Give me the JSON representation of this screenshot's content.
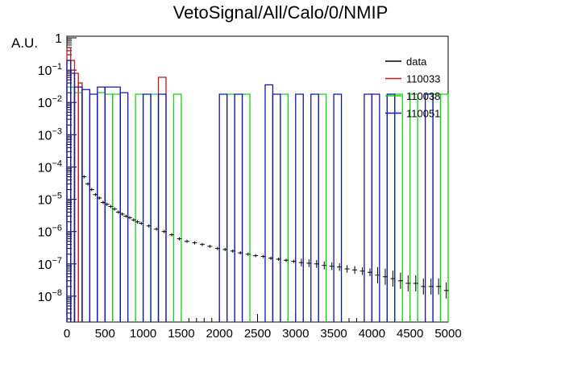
{
  "chart_data": {
    "type": "histogram",
    "title": "VetoSignal/All/Calo/0/NMIP",
    "xlabel": "",
    "ylabel": "A.U.",
    "xlim": [
      0,
      5000
    ],
    "ylim_log10": [
      -8.8,
      0.05
    ],
    "yscale": "log",
    "x_tick_labels": [
      "0",
      "500",
      "1000",
      "1500",
      "2000",
      "2500",
      "3000",
      "3500",
      "4000",
      "4500",
      "5000"
    ],
    "y_tick_labels": [
      {
        "base": "1",
        "exp": ""
      },
      {
        "base": "10",
        "exp": "−1"
      },
      {
        "base": "10",
        "exp": "−2"
      },
      {
        "base": "10",
        "exp": "−3"
      },
      {
        "base": "10",
        "exp": "−4"
      },
      {
        "base": "10",
        "exp": "−5"
      },
      {
        "base": "10",
        "exp": "−6"
      },
      {
        "base": "10",
        "exp": "−7"
      },
      {
        "base": "10",
        "exp": "−8"
      }
    ],
    "legend_position": "top-right",
    "series": [
      {
        "name": "data",
        "color": "#000000",
        "style": "errorbar",
        "x": [
          250,
          300,
          350,
          400,
          450,
          500,
          550,
          600,
          650,
          700,
          750,
          800,
          850,
          900,
          950,
          1000,
          1100,
          1200,
          1300,
          1400,
          1500,
          1600,
          1700,
          1800,
          1900,
          2000,
          2100,
          2200,
          2300,
          2400,
          2500,
          2600,
          2700,
          2800,
          2900,
          3000,
          3100,
          3200,
          3300,
          3400,
          3500,
          3600,
          3700,
          3800,
          3900,
          4000,
          4100,
          4200,
          4300,
          4400,
          4500,
          4600,
          4700,
          4800,
          4900,
          5000
        ],
        "y": [
          5e-05,
          3e-05,
          2e-05,
          1.4e-05,
          1.1e-05,
          8e-06,
          7e-06,
          6e-06,
          5e-06,
          4e-06,
          3.5e-06,
          3e-06,
          2.7e-06,
          2.3e-06,
          2e-06,
          1.8e-06,
          1.5e-06,
          1.2e-06,
          1e-06,
          8e-07,
          6e-07,
          5e-07,
          4.5e-07,
          4e-07,
          3.5e-07,
          3e-07,
          2.8e-07,
          2.5e-07,
          2.2e-07,
          2e-07,
          1.8e-07,
          1.7e-07,
          1.5e-07,
          1.4e-07,
          1.3e-07,
          1.2e-07,
          1.1e-07,
          1.05e-07,
          1e-07,
          9e-08,
          8.5e-08,
          8e-08,
          7e-08,
          6.5e-08,
          6e-08,
          5.5e-08,
          4.5e-08,
          4e-08,
          3.5e-08,
          3e-08,
          2.5e-08,
          2.5e-08,
          2e-08,
          2e-08,
          2e-08,
          1.5e-08
        ]
      },
      {
        "name": "110033",
        "color": "#c81414",
        "style": "step",
        "bins": [
          [
            0,
            50,
            0.5
          ],
          [
            50,
            100,
            0.2
          ],
          [
            100,
            150,
            0.08
          ],
          [
            150,
            200,
            0.04
          ],
          [
            1200,
            1300,
            0.06
          ]
        ]
      },
      {
        "name": "110038",
        "color": "#14d214",
        "style": "step",
        "bins": [
          [
            0,
            100,
            0.03
          ],
          [
            100,
            200,
            0.02
          ],
          [
            400,
            500,
            0.02
          ],
          [
            500,
            600,
            0.018
          ],
          [
            600,
            700,
            0.018
          ],
          [
            900,
            1000,
            0.018
          ],
          [
            1100,
            1200,
            0.018
          ],
          [
            1400,
            1500,
            0.018
          ],
          [
            2100,
            2200,
            0.018
          ],
          [
            2300,
            2400,
            0.018
          ],
          [
            2800,
            2900,
            0.018
          ],
          [
            3300,
            3400,
            0.018
          ],
          [
            4200,
            4300,
            0.018
          ],
          [
            4300,
            4400,
            0.018
          ],
          [
            4500,
            4600,
            0.018
          ],
          [
            4800,
            4900,
            0.018
          ],
          [
            4900,
            5000,
            0.018
          ]
        ]
      },
      {
        "name": "110051",
        "color": "#1414b4",
        "style": "step",
        "bins": [
          [
            0,
            50,
            0.2
          ],
          [
            50,
            100,
            0.08
          ],
          [
            100,
            200,
            0.03
          ],
          [
            200,
            300,
            0.025
          ],
          [
            300,
            400,
            0.018
          ],
          [
            400,
            500,
            0.03
          ],
          [
            500,
            700,
            0.03
          ],
          [
            700,
            800,
            0.02
          ],
          [
            1000,
            1100,
            0.018
          ],
          [
            1200,
            1300,
            0.018
          ],
          [
            2000,
            2100,
            0.018
          ],
          [
            2200,
            2300,
            0.018
          ],
          [
            2600,
            2700,
            0.035
          ],
          [
            2700,
            2800,
            0.018
          ],
          [
            3000,
            3100,
            0.018
          ],
          [
            3200,
            3300,
            0.018
          ],
          [
            3500,
            3600,
            0.018
          ],
          [
            3900,
            4000,
            0.018
          ],
          [
            4000,
            4100,
            0.018
          ],
          [
            4200,
            4300,
            0.018
          ],
          [
            4700,
            4800,
            0.018
          ]
        ]
      }
    ]
  }
}
